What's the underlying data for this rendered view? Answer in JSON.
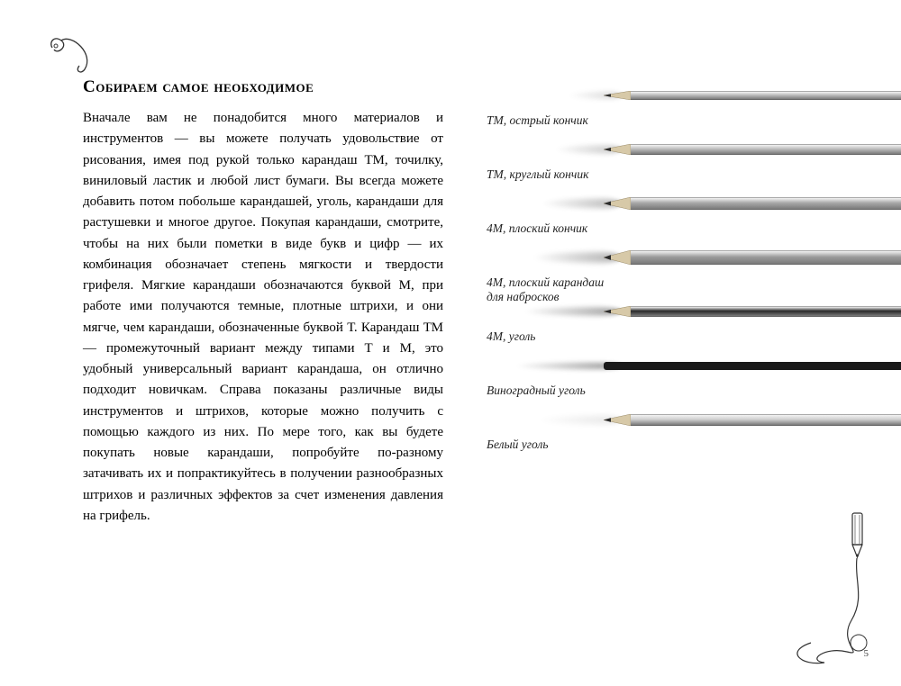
{
  "heading": "Собираем самое необходимое",
  "body": "Вначале вам не понадобится много материалов и инструментов — вы можете получать удовольствие от рисования, имея под рукой только карандаш ТМ, точилку, виниловый ластик и любой лист бумаги. Вы всегда можете добавить потом побольше карандашей, уголь, карандаши для растушевки и многое другое. Покупая карандаши, смотрите, чтобы на них были пометки в виде букв и цифр — их комбинация обозначает степень мягкости и твердости грифеля. Мягкие карандаши обозначаются буквой М, при работе ими получаются темные, плотные штрихи, и они мягче, чем карандаши, обозначенные буквой Т. Карандаш ТМ — промежуточный вариант между типами Т и М, это удобный универсальный вариант карандаша, он отлично подходит новичкам. Справа показаны различные виды инструментов и штрихов, которые можно получить с помощью каждого из них. По мере того, как вы будете покупать новые карандаши, попробуйте по-разному затачивать их и попрактикуйтесь в получении разнообразных штрихов и различных эффектов за счет изменения давления на грифель.",
  "pencils": [
    {
      "label": "ТМ, острый кончик",
      "body_color": "#bcbcbc",
      "body_h": 10,
      "tip": "sharp",
      "smudge_w": 60,
      "smudge_opacity": 0.25
    },
    {
      "label": "ТМ, круглый кончик",
      "body_color": "#bcbcbc",
      "body_h": 12,
      "tip": "round",
      "smudge_w": 75,
      "smudge_opacity": 0.35
    },
    {
      "label": "4М, плоский кончик",
      "body_color": "#a8a8a8",
      "body_h": 14,
      "tip": "flat",
      "smudge_w": 90,
      "smudge_opacity": 0.45
    },
    {
      "label": "4М, плоский карандаш\nдля набросков",
      "body_color": "#9c9c9c",
      "body_h": 16,
      "tip": "flat",
      "smudge_w": 100,
      "smudge_opacity": 0.5
    },
    {
      "label": "4М, уголь",
      "body_color": "#2a2a2a",
      "body_h": 12,
      "tip": "round",
      "smudge_w": 110,
      "smudge_opacity": 0.6
    },
    {
      "label": "Виноградный уголь",
      "body_color": "#1a1a1a",
      "body_h": 9,
      "tip": "stick",
      "smudge_w": 120,
      "smudge_opacity": 0.65
    },
    {
      "label": "Белый уголь",
      "body_color": "#cfcfcf",
      "body_h": 13,
      "tip": "round",
      "smudge_w": 95,
      "smudge_opacity": 0.15
    }
  ],
  "page_number": "5",
  "colors": {
    "text": "#000000",
    "label_text": "#222222",
    "page_bg": "#ffffff",
    "ornament_stroke": "#333333"
  }
}
